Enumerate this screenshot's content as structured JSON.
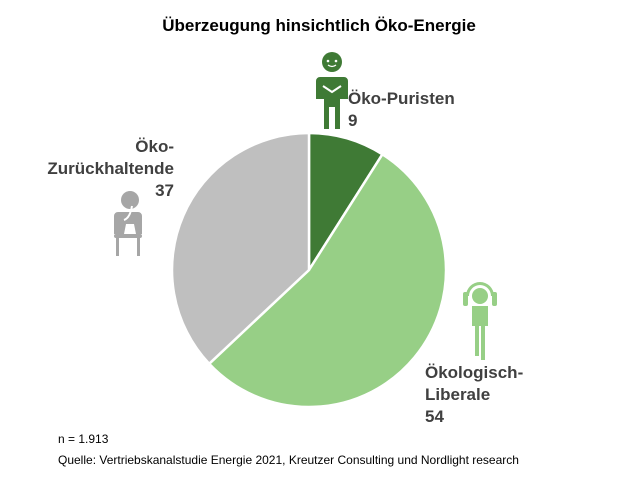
{
  "chart_data": {
    "type": "pie",
    "title": "Überzeugung hinsichtlich Öko-Energie",
    "slices": [
      {
        "label_line1": "Öko-Puristen",
        "label_line2": "",
        "value": 9,
        "color": "#3f7a35",
        "icon": "meditating-person-icon"
      },
      {
        "label_line1": "Ökologisch-",
        "label_line2": "Liberale",
        "value": 54,
        "color": "#97cf86",
        "icon": "relaxed-person-icon"
      },
      {
        "label_line1": "Öko-",
        "label_line2": "Zurückhaltende",
        "value": 37,
        "color": "#bfbfbf",
        "icon": "thinking-person-icon"
      }
    ],
    "start_angle_deg": 0,
    "direction": "clockwise",
    "slice_border_color": "#ffffff"
  },
  "footnotes": {
    "sample": "n = 1.913",
    "source": "Quelle: Vertriebskanalstudie Energie 2021, Kreutzer Consulting und Nordlight research"
  },
  "colors": {
    "label_text": "#404040",
    "icon_green_dark": "#3f7a35",
    "icon_green_light": "#97cf86",
    "icon_gray": "#a6a6a6"
  }
}
